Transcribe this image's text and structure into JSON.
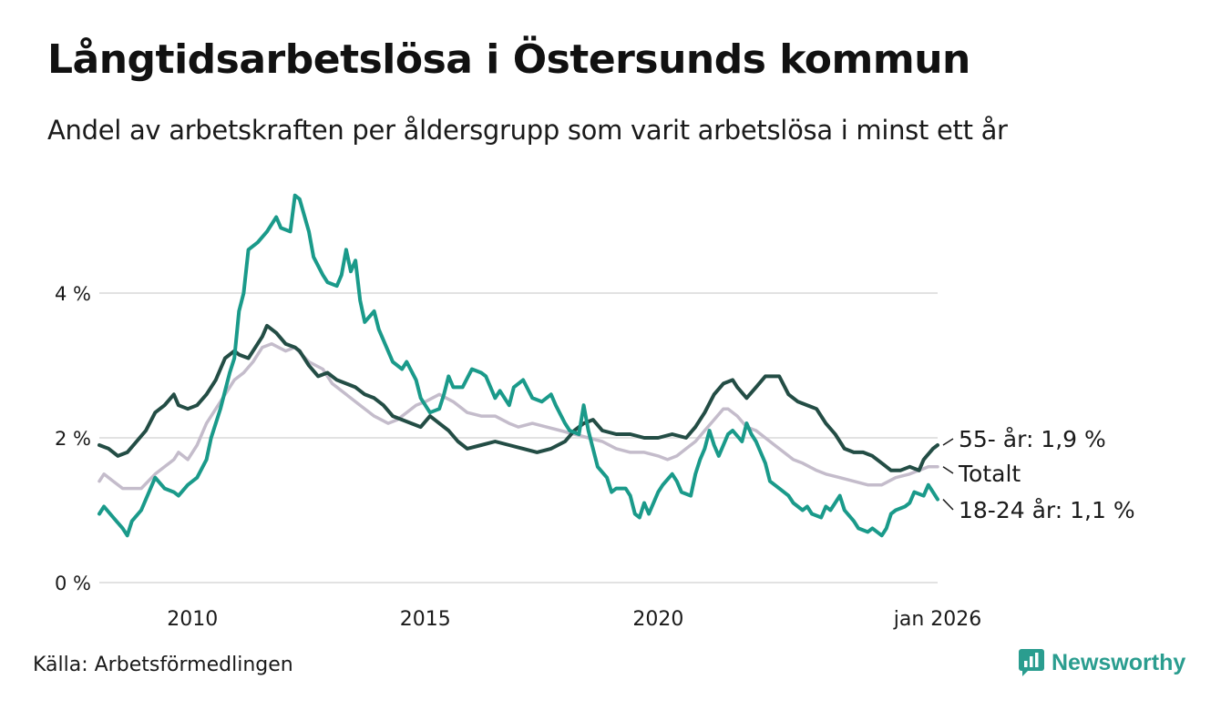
{
  "header": {
    "title": "Långtidsarbetslösa i Östersunds kommun",
    "subtitle": "Andel av arbetskraften per åldersgrupp som varit arbetslösa i minst ett år"
  },
  "footer": {
    "source": "Källa: Arbetsförmedlingen",
    "brand": "Newsworthy"
  },
  "colors": {
    "youth": "#1a9a8a",
    "senior": "#234d45",
    "total": "#c4bccb",
    "grid": "#e2e2e2",
    "brand": "#2a9d8f"
  },
  "chart_data": {
    "type": "line",
    "title": "Långtidsarbetslösa i Östersunds kommun",
    "xlabel": "",
    "ylabel": "",
    "xlim": [
      2008.0,
      2026.0
    ],
    "ylim": [
      0,
      5.5
    ],
    "y_ticks": [
      {
        "value": 0,
        "label": "0 %"
      },
      {
        "value": 2,
        "label": "2 %"
      },
      {
        "value": 4,
        "label": "4 %"
      }
    ],
    "x_ticks": [
      {
        "value": 2010,
        "label": "2010"
      },
      {
        "value": 2015,
        "label": "2015"
      },
      {
        "value": 2020,
        "label": "2020"
      },
      {
        "value": 2026,
        "label": "jan 2026"
      }
    ],
    "series": [
      {
        "name": "Totalt",
        "key": "total",
        "end_label": "Totalt",
        "points": [
          [
            2008.0,
            1.4
          ],
          [
            2008.1,
            1.5
          ],
          [
            2008.3,
            1.4
          ],
          [
            2008.5,
            1.3
          ],
          [
            2008.9,
            1.3
          ],
          [
            2009.2,
            1.5
          ],
          [
            2009.4,
            1.6
          ],
          [
            2009.6,
            1.7
          ],
          [
            2009.7,
            1.8
          ],
          [
            2009.9,
            1.7
          ],
          [
            2010.1,
            1.9
          ],
          [
            2010.3,
            2.2
          ],
          [
            2010.6,
            2.5
          ],
          [
            2010.9,
            2.8
          ],
          [
            2011.1,
            2.9
          ],
          [
            2011.3,
            3.05
          ],
          [
            2011.5,
            3.25
          ],
          [
            2011.7,
            3.3
          ],
          [
            2012.0,
            3.2
          ],
          [
            2012.2,
            3.25
          ],
          [
            2012.5,
            3.05
          ],
          [
            2012.8,
            2.95
          ],
          [
            2013.0,
            2.75
          ],
          [
            2013.3,
            2.6
          ],
          [
            2013.6,
            2.45
          ],
          [
            2013.9,
            2.3
          ],
          [
            2014.2,
            2.2
          ],
          [
            2014.4,
            2.25
          ],
          [
            2014.6,
            2.35
          ],
          [
            2014.8,
            2.45
          ],
          [
            2015.0,
            2.5
          ],
          [
            2015.3,
            2.6
          ],
          [
            2015.6,
            2.5
          ],
          [
            2015.9,
            2.35
          ],
          [
            2016.2,
            2.3
          ],
          [
            2016.5,
            2.3
          ],
          [
            2016.8,
            2.2
          ],
          [
            2017.0,
            2.15
          ],
          [
            2017.3,
            2.2
          ],
          [
            2017.6,
            2.15
          ],
          [
            2017.9,
            2.1
          ],
          [
            2018.2,
            2.05
          ],
          [
            2018.5,
            2.0
          ],
          [
            2018.8,
            1.95
          ],
          [
            2019.1,
            1.85
          ],
          [
            2019.4,
            1.8
          ],
          [
            2019.7,
            1.8
          ],
          [
            2020.0,
            1.75
          ],
          [
            2020.2,
            1.7
          ],
          [
            2020.4,
            1.75
          ],
          [
            2020.6,
            1.85
          ],
          [
            2020.8,
            1.95
          ],
          [
            2021.0,
            2.1
          ],
          [
            2021.2,
            2.25
          ],
          [
            2021.4,
            2.4
          ],
          [
            2021.5,
            2.4
          ],
          [
            2021.7,
            2.3
          ],
          [
            2021.9,
            2.15
          ],
          [
            2022.1,
            2.1
          ],
          [
            2022.3,
            2.0
          ],
          [
            2022.5,
            1.9
          ],
          [
            2022.7,
            1.8
          ],
          [
            2022.9,
            1.7
          ],
          [
            2023.1,
            1.65
          ],
          [
            2023.4,
            1.55
          ],
          [
            2023.6,
            1.5
          ],
          [
            2023.9,
            1.45
          ],
          [
            2024.2,
            1.4
          ],
          [
            2024.5,
            1.35
          ],
          [
            2024.8,
            1.35
          ],
          [
            2025.1,
            1.45
          ],
          [
            2025.4,
            1.5
          ],
          [
            2025.6,
            1.55
          ],
          [
            2025.8,
            1.6
          ],
          [
            2026.0,
            1.6
          ]
        ]
      },
      {
        "name": "55- år",
        "key": "senior",
        "end_label": "55- år: 1,9 %",
        "points": [
          [
            2008.0,
            1.9
          ],
          [
            2008.2,
            1.85
          ],
          [
            2008.4,
            1.75
          ],
          [
            2008.6,
            1.8
          ],
          [
            2008.8,
            1.95
          ],
          [
            2009.0,
            2.1
          ],
          [
            2009.2,
            2.35
          ],
          [
            2009.4,
            2.45
          ],
          [
            2009.6,
            2.6
          ],
          [
            2009.7,
            2.45
          ],
          [
            2009.9,
            2.4
          ],
          [
            2010.1,
            2.45
          ],
          [
            2010.3,
            2.6
          ],
          [
            2010.5,
            2.8
          ],
          [
            2010.7,
            3.1
          ],
          [
            2010.9,
            3.2
          ],
          [
            2011.0,
            3.15
          ],
          [
            2011.2,
            3.1
          ],
          [
            2011.3,
            3.2
          ],
          [
            2011.5,
            3.4
          ],
          [
            2011.6,
            3.55
          ],
          [
            2011.8,
            3.45
          ],
          [
            2012.0,
            3.3
          ],
          [
            2012.2,
            3.25
          ],
          [
            2012.3,
            3.2
          ],
          [
            2012.5,
            3.0
          ],
          [
            2012.7,
            2.85
          ],
          [
            2012.9,
            2.9
          ],
          [
            2013.1,
            2.8
          ],
          [
            2013.3,
            2.75
          ],
          [
            2013.5,
            2.7
          ],
          [
            2013.7,
            2.6
          ],
          [
            2013.9,
            2.55
          ],
          [
            2014.1,
            2.45
          ],
          [
            2014.3,
            2.3
          ],
          [
            2014.5,
            2.25
          ],
          [
            2014.7,
            2.2
          ],
          [
            2014.9,
            2.15
          ],
          [
            2015.1,
            2.3
          ],
          [
            2015.3,
            2.2
          ],
          [
            2015.5,
            2.1
          ],
          [
            2015.7,
            1.95
          ],
          [
            2015.9,
            1.85
          ],
          [
            2016.2,
            1.9
          ],
          [
            2016.5,
            1.95
          ],
          [
            2016.8,
            1.9
          ],
          [
            2017.1,
            1.85
          ],
          [
            2017.4,
            1.8
          ],
          [
            2017.7,
            1.85
          ],
          [
            2018.0,
            1.95
          ],
          [
            2018.2,
            2.1
          ],
          [
            2018.4,
            2.2
          ],
          [
            2018.6,
            2.25
          ],
          [
            2018.8,
            2.1
          ],
          [
            2019.1,
            2.05
          ],
          [
            2019.4,
            2.05
          ],
          [
            2019.7,
            2.0
          ],
          [
            2020.0,
            2.0
          ],
          [
            2020.3,
            2.05
          ],
          [
            2020.6,
            2.0
          ],
          [
            2020.8,
            2.15
          ],
          [
            2021.0,
            2.35
          ],
          [
            2021.2,
            2.6
          ],
          [
            2021.4,
            2.75
          ],
          [
            2021.6,
            2.8
          ],
          [
            2021.7,
            2.7
          ],
          [
            2021.9,
            2.55
          ],
          [
            2022.1,
            2.7
          ],
          [
            2022.3,
            2.85
          ],
          [
            2022.6,
            2.85
          ],
          [
            2022.8,
            2.6
          ],
          [
            2023.0,
            2.5
          ],
          [
            2023.2,
            2.45
          ],
          [
            2023.4,
            2.4
          ],
          [
            2023.6,
            2.2
          ],
          [
            2023.8,
            2.05
          ],
          [
            2024.0,
            1.85
          ],
          [
            2024.2,
            1.8
          ],
          [
            2024.4,
            1.8
          ],
          [
            2024.6,
            1.75
          ],
          [
            2024.8,
            1.65
          ],
          [
            2025.0,
            1.55
          ],
          [
            2025.2,
            1.55
          ],
          [
            2025.4,
            1.6
          ],
          [
            2025.6,
            1.55
          ],
          [
            2025.7,
            1.7
          ],
          [
            2025.9,
            1.85
          ],
          [
            2026.0,
            1.9
          ]
        ]
      },
      {
        "name": "18-24 år",
        "key": "youth",
        "end_label": "18-24 år: 1,1 %",
        "points": [
          [
            2008.0,
            0.95
          ],
          [
            2008.1,
            1.05
          ],
          [
            2008.3,
            0.9
          ],
          [
            2008.5,
            0.75
          ],
          [
            2008.6,
            0.65
          ],
          [
            2008.7,
            0.85
          ],
          [
            2008.9,
            1.0
          ],
          [
            2009.1,
            1.3
          ],
          [
            2009.2,
            1.45
          ],
          [
            2009.4,
            1.3
          ],
          [
            2009.6,
            1.25
          ],
          [
            2009.7,
            1.2
          ],
          [
            2009.9,
            1.35
          ],
          [
            2010.1,
            1.45
          ],
          [
            2010.3,
            1.7
          ],
          [
            2010.4,
            2.0
          ],
          [
            2010.6,
            2.4
          ],
          [
            2010.8,
            2.9
          ],
          [
            2010.9,
            3.1
          ],
          [
            2011.0,
            3.75
          ],
          [
            2011.1,
            4.0
          ],
          [
            2011.2,
            4.6
          ],
          [
            2011.4,
            4.7
          ],
          [
            2011.6,
            4.85
          ],
          [
            2011.8,
            5.05
          ],
          [
            2011.9,
            4.9
          ],
          [
            2012.1,
            4.85
          ],
          [
            2012.2,
            5.35
          ],
          [
            2012.3,
            5.3
          ],
          [
            2012.5,
            4.85
          ],
          [
            2012.6,
            4.5
          ],
          [
            2012.8,
            4.25
          ],
          [
            2012.9,
            4.15
          ],
          [
            2013.1,
            4.1
          ],
          [
            2013.2,
            4.25
          ],
          [
            2013.3,
            4.6
          ],
          [
            2013.4,
            4.3
          ],
          [
            2013.5,
            4.45
          ],
          [
            2013.6,
            3.9
          ],
          [
            2013.7,
            3.6
          ],
          [
            2013.9,
            3.75
          ],
          [
            2014.0,
            3.5
          ],
          [
            2014.2,
            3.2
          ],
          [
            2014.3,
            3.05
          ],
          [
            2014.5,
            2.95
          ],
          [
            2014.6,
            3.05
          ],
          [
            2014.8,
            2.8
          ],
          [
            2014.9,
            2.55
          ],
          [
            2015.1,
            2.35
          ],
          [
            2015.3,
            2.4
          ],
          [
            2015.4,
            2.6
          ],
          [
            2015.5,
            2.85
          ],
          [
            2015.6,
            2.7
          ],
          [
            2015.8,
            2.7
          ],
          [
            2016.0,
            2.95
          ],
          [
            2016.2,
            2.9
          ],
          [
            2016.3,
            2.85
          ],
          [
            2016.5,
            2.55
          ],
          [
            2016.6,
            2.65
          ],
          [
            2016.8,
            2.45
          ],
          [
            2016.9,
            2.7
          ],
          [
            2017.1,
            2.8
          ],
          [
            2017.3,
            2.55
          ],
          [
            2017.5,
            2.5
          ],
          [
            2017.7,
            2.6
          ],
          [
            2017.8,
            2.45
          ],
          [
            2018.0,
            2.2
          ],
          [
            2018.1,
            2.1
          ],
          [
            2018.3,
            2.05
          ],
          [
            2018.4,
            2.45
          ],
          [
            2018.5,
            2.1
          ],
          [
            2018.6,
            1.85
          ],
          [
            2018.7,
            1.6
          ],
          [
            2018.9,
            1.45
          ],
          [
            2019.0,
            1.25
          ],
          [
            2019.1,
            1.3
          ],
          [
            2019.3,
            1.3
          ],
          [
            2019.4,
            1.2
          ],
          [
            2019.5,
            0.95
          ],
          [
            2019.6,
            0.9
          ],
          [
            2019.7,
            1.1
          ],
          [
            2019.8,
            0.95
          ],
          [
            2020.0,
            1.25
          ],
          [
            2020.1,
            1.35
          ],
          [
            2020.3,
            1.5
          ],
          [
            2020.4,
            1.4
          ],
          [
            2020.5,
            1.25
          ],
          [
            2020.7,
            1.2
          ],
          [
            2020.8,
            1.5
          ],
          [
            2020.9,
            1.7
          ],
          [
            2021.0,
            1.85
          ],
          [
            2021.1,
            2.1
          ],
          [
            2021.2,
            1.9
          ],
          [
            2021.3,
            1.75
          ],
          [
            2021.4,
            1.9
          ],
          [
            2021.5,
            2.05
          ],
          [
            2021.6,
            2.1
          ],
          [
            2021.8,
            1.95
          ],
          [
            2021.9,
            2.2
          ],
          [
            2022.0,
            2.05
          ],
          [
            2022.1,
            1.95
          ],
          [
            2022.3,
            1.65
          ],
          [
            2022.4,
            1.4
          ],
          [
            2022.6,
            1.3
          ],
          [
            2022.8,
            1.2
          ],
          [
            2022.9,
            1.1
          ],
          [
            2023.1,
            1.0
          ],
          [
            2023.2,
            1.05
          ],
          [
            2023.3,
            0.95
          ],
          [
            2023.5,
            0.9
          ],
          [
            2023.6,
            1.05
          ],
          [
            2023.7,
            1.0
          ],
          [
            2023.9,
            1.2
          ],
          [
            2024.0,
            1.0
          ],
          [
            2024.2,
            0.85
          ],
          [
            2024.3,
            0.75
          ],
          [
            2024.5,
            0.7
          ],
          [
            2024.6,
            0.75
          ],
          [
            2024.8,
            0.65
          ],
          [
            2024.9,
            0.75
          ],
          [
            2025.0,
            0.95
          ],
          [
            2025.1,
            1.0
          ],
          [
            2025.3,
            1.05
          ],
          [
            2025.4,
            1.1
          ],
          [
            2025.5,
            1.25
          ],
          [
            2025.7,
            1.2
          ],
          [
            2025.8,
            1.35
          ],
          [
            2025.9,
            1.25
          ],
          [
            2026.0,
            1.15
          ]
        ]
      }
    ]
  }
}
